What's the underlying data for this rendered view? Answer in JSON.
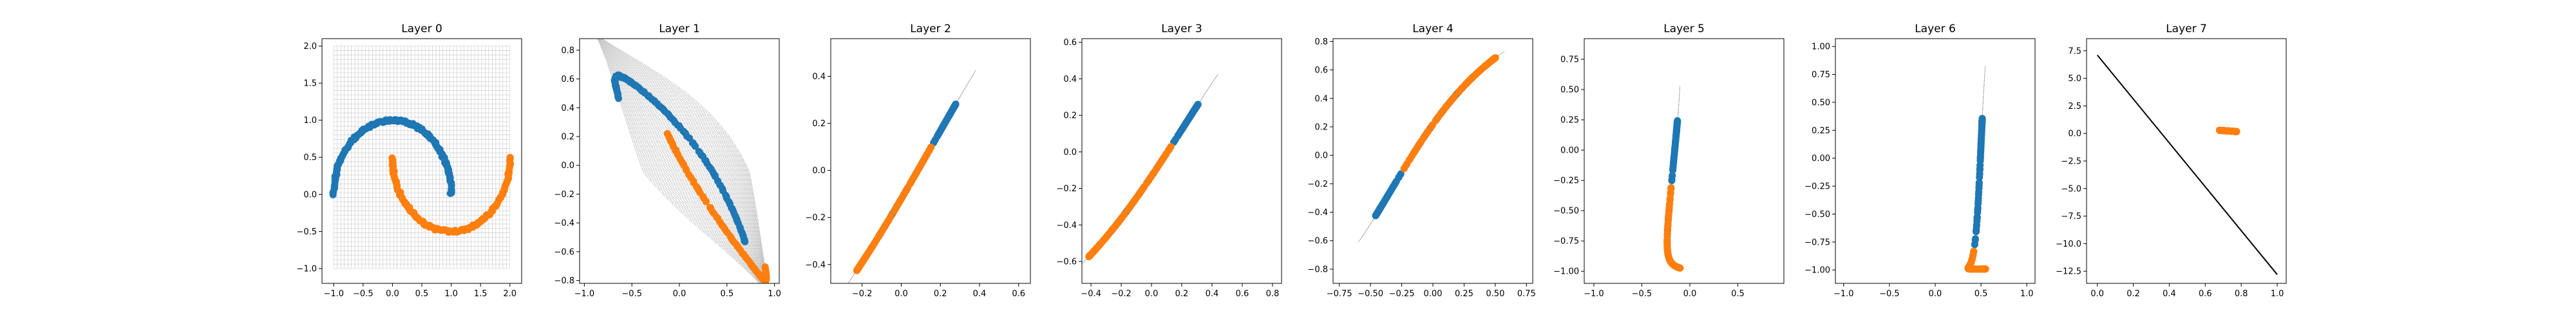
{
  "chart_data": [
    {
      "type": "scatter",
      "title": "Layer 0",
      "xlim": [
        -1.2,
        2.2
      ],
      "ylim": [
        -1.2,
        2.1
      ],
      "xticks": [
        "-1.0",
        "-0.5",
        "0.0",
        "0.5",
        "1.0",
        "1.5",
        "2.0"
      ],
      "yticks": [
        "-1.0",
        "-0.5",
        "0.0",
        "0.5",
        "1.0",
        "1.5",
        "2.0"
      ],
      "grid": "mesh",
      "series": [
        {
          "color": "#1f77b4"
        },
        {
          "color": "#ff7f0e"
        }
      ]
    },
    {
      "type": "scatter",
      "title": "Layer 1",
      "xlim": [
        -1.05,
        1.05
      ],
      "ylim": [
        -0.82,
        0.88
      ],
      "xticks": [
        "-1.0",
        "-0.5",
        "0.0",
        "0.5",
        "1.0"
      ],
      "yticks": [
        "-0.8",
        "-0.6",
        "-0.4",
        "-0.2",
        "0.0",
        "0.2",
        "0.4",
        "0.6",
        "0.8"
      ],
      "grid": "mesh",
      "series": [
        {
          "color": "#1f77b4"
        },
        {
          "color": "#ff7f0e"
        }
      ]
    },
    {
      "type": "scatter",
      "title": "Layer 2",
      "xlim": [
        -0.36,
        0.66
      ],
      "ylim": [
        -0.48,
        0.56
      ],
      "xticks": [
        "-0.2",
        "0.0",
        "0.2",
        "0.4",
        "0.6"
      ],
      "yticks": [
        "-0.4",
        "-0.2",
        "0.0",
        "0.2",
        "0.4"
      ],
      "grid": "mesh",
      "series": [
        {
          "color": "#1f77b4"
        },
        {
          "color": "#ff7f0e"
        }
      ]
    },
    {
      "type": "scatter",
      "title": "Layer 3",
      "xlim": [
        -0.46,
        0.86
      ],
      "ylim": [
        -0.72,
        0.62
      ],
      "xticks": [
        "-0.4",
        "-0.2",
        "0.0",
        "0.2",
        "0.4",
        "0.6",
        "0.8"
      ],
      "yticks": [
        "-0.6",
        "-0.4",
        "-0.2",
        "0.0",
        "0.2",
        "0.4",
        "0.6"
      ],
      "grid": "mesh",
      "series": [
        {
          "color": "#1f77b4"
        },
        {
          "color": "#ff7f0e"
        }
      ]
    },
    {
      "type": "scatter",
      "title": "Layer 4",
      "xlim": [
        -0.8,
        0.8
      ],
      "ylim": [
        -0.9,
        0.82
      ],
      "xticks": [
        "-0.75",
        "-0.50",
        "-0.25",
        "0.00",
        "0.25",
        "0.50",
        "0.75"
      ],
      "yticks": [
        "-0.8",
        "-0.6",
        "-0.4",
        "-0.2",
        "0.0",
        "0.2",
        "0.4",
        "0.6",
        "0.8"
      ],
      "grid": "mesh",
      "series": [
        {
          "color": "#1f77b4"
        },
        {
          "color": "#ff7f0e"
        }
      ]
    },
    {
      "type": "scatter",
      "title": "Layer 5",
      "xlim": [
        -1.1,
        0.98
      ],
      "ylim": [
        -1.1,
        0.92
      ],
      "xticks": [
        "-1.0",
        "-0.5",
        "0.0",
        "0.5"
      ],
      "yticks": [
        "-1.00",
        "-0.75",
        "-0.50",
        "-0.25",
        "0.00",
        "0.25",
        "0.50",
        "0.75"
      ],
      "grid": "mesh",
      "series": [
        {
          "color": "#1f77b4"
        },
        {
          "color": "#ff7f0e"
        }
      ]
    },
    {
      "type": "scatter",
      "title": "Layer 6",
      "xlim": [
        -1.09,
        1.09
      ],
      "ylim": [
        -1.12,
        1.07
      ],
      "xticks": [
        "-1.0",
        "-0.5",
        "0.0",
        "0.5",
        "1.0"
      ],
      "yticks": [
        "-1.00",
        "-0.75",
        "-0.50",
        "-0.25",
        "0.00",
        "0.25",
        "0.50",
        "0.75",
        "1.00"
      ],
      "grid": "mesh",
      "series": [
        {
          "color": "#1f77b4"
        },
        {
          "color": "#ff7f0e"
        }
      ]
    },
    {
      "type": "scatter",
      "title": "Layer 7",
      "xlim": [
        -0.06,
        1.05
      ],
      "ylim": [
        -13.6,
        8.6
      ],
      "xticks": [
        "0.0",
        "0.2",
        "0.4",
        "0.6",
        "0.8",
        "1.0"
      ],
      "yticks": [
        "-12.5",
        "-10.0",
        "-7.5",
        "-5.0",
        "-2.5",
        "0.0",
        "2.5",
        "5.0",
        "7.5"
      ],
      "line": {
        "from": [
          0.0,
          7.1
        ],
        "to": [
          1.0,
          -12.8
        ],
        "color": "#000000"
      },
      "series": [
        {
          "color": "#1f77b4"
        },
        {
          "color": "#ff7f0e"
        }
      ]
    }
  ]
}
